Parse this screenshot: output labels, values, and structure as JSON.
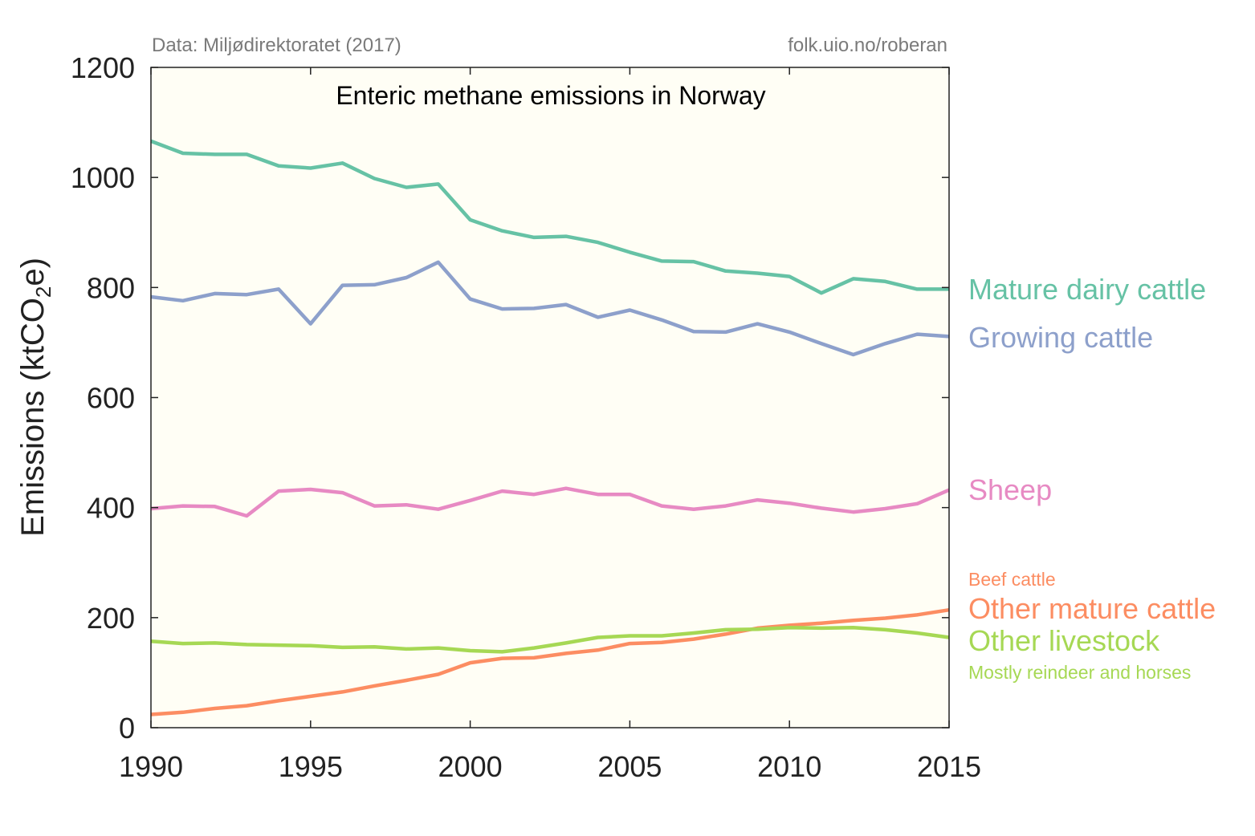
{
  "chart_data": {
    "type": "line",
    "title": "Enteric methane emissions in Norway",
    "source_note": "Data: Miljødirektoratet (2017)",
    "credit": "folk.uio.no/roberan",
    "ylabel_main": "Emissions (ktCO",
    "ylabel_sub": "2",
    "ylabel_end": "e)",
    "xlim": [
      1990,
      2015
    ],
    "ylim": [
      0,
      1200
    ],
    "x_ticks": [
      1990,
      1995,
      2000,
      2005,
      2010,
      2015
    ],
    "y_ticks": [
      0,
      200,
      400,
      600,
      800,
      1000,
      1200
    ],
    "x": [
      1990,
      1991,
      1992,
      1993,
      1994,
      1995,
      1996,
      1997,
      1998,
      1999,
      2000,
      2001,
      2002,
      2003,
      2004,
      2005,
      2006,
      2007,
      2008,
      2009,
      2010,
      2011,
      2012,
      2013,
      2014,
      2015
    ],
    "plot_background": "#fffef5",
    "grid": false,
    "legend": "inline-right",
    "series": [
      {
        "name": "Mature dairy cattle",
        "color": "#66c2a5",
        "values": [
          1066,
          1044,
          1042,
          1042,
          1021,
          1017,
          1026,
          998,
          982,
          988,
          923,
          903,
          891,
          893,
          882,
          864,
          848,
          847,
          830,
          826,
          820,
          790,
          816,
          811,
          797,
          797
        ]
      },
      {
        "name": "Growing cattle",
        "color": "#8da0cb",
        "values": [
          783,
          776,
          789,
          787,
          797,
          734,
          804,
          805,
          818,
          846,
          779,
          761,
          762,
          769,
          746,
          759,
          741,
          720,
          719,
          734,
          719,
          698,
          678,
          698,
          715,
          711
        ]
      },
      {
        "name": "Sheep",
        "color": "#e78ac3",
        "values": [
          398,
          403,
          402,
          385,
          430,
          433,
          427,
          403,
          405,
          397,
          413,
          430,
          424,
          435,
          424,
          424,
          403,
          397,
          403,
          414,
          408,
          399,
          392,
          398,
          407,
          432
        ]
      },
      {
        "name": "Other mature cattle",
        "note": "Beef cattle",
        "color": "#fc8d62",
        "values": [
          24,
          28,
          35,
          40,
          49,
          57,
          65,
          76,
          86,
          97,
          118,
          126,
          127,
          135,
          141,
          153,
          155,
          161,
          170,
          181,
          186,
          190,
          195,
          199,
          205,
          214
        ]
      },
      {
        "name": "Other livestock",
        "note": "Mostly reindeer and horses",
        "color": "#a6d854",
        "values": [
          157,
          153,
          154,
          151,
          150,
          149,
          146,
          147,
          143,
          145,
          140,
          138,
          145,
          154,
          164,
          167,
          167,
          172,
          178,
          179,
          182,
          181,
          182,
          178,
          172,
          164
        ]
      }
    ]
  }
}
